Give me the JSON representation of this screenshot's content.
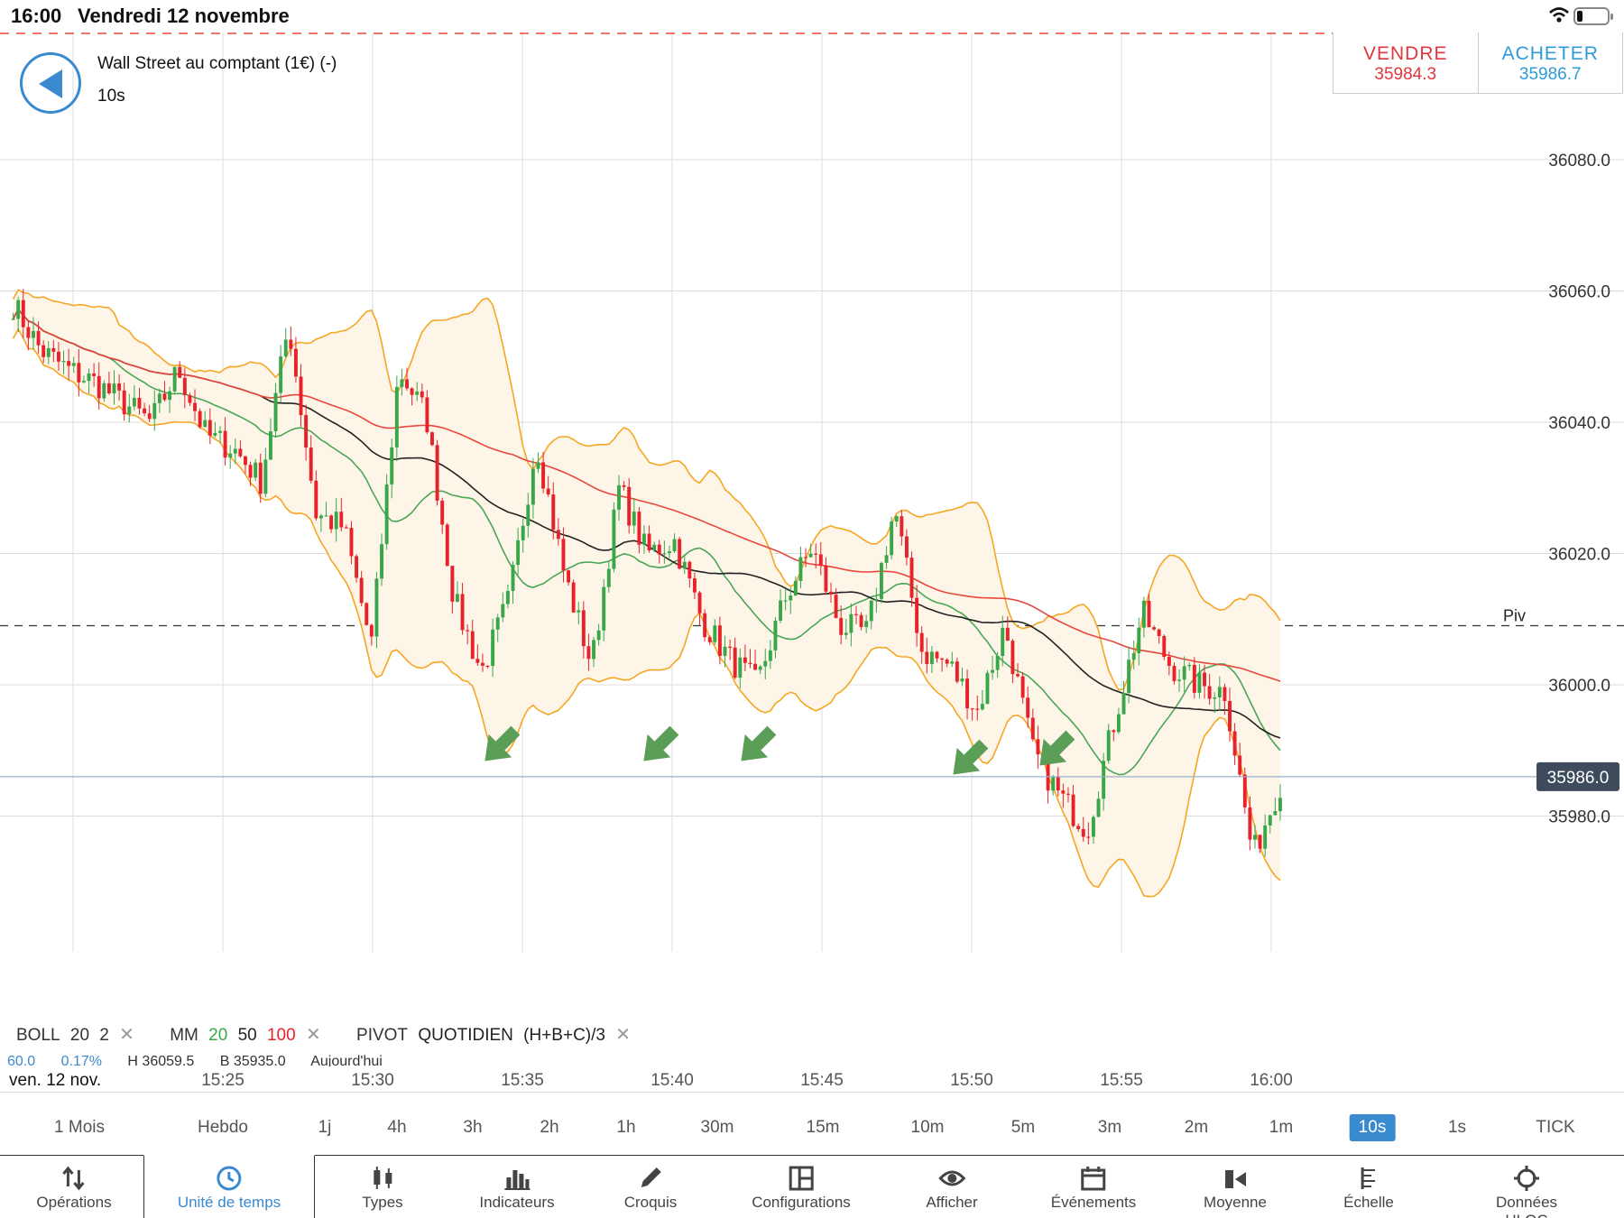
{
  "status_bar": {
    "time": "16:00",
    "date": "Vendredi 12 novembre",
    "icons": [
      "wifi-icon",
      "battery-icon"
    ]
  },
  "header": {
    "instrument": "Wall Street au comptant (1€) (-)",
    "timeframe": "10s"
  },
  "trade": {
    "sell_label": "VENDRE",
    "sell_price": "35984.3",
    "buy_label": "ACHETER",
    "buy_price": "35986.7"
  },
  "colors": {
    "up": "#3aa64a",
    "down": "#e8222a",
    "boll": "#f5a623",
    "mm20": "#4aa657",
    "mm50": "#222222",
    "mm100": "#e8473c",
    "accent": "#3a8ad0",
    "arrow": "#5b9e57"
  },
  "indicators": {
    "boll": {
      "name": "BOLL",
      "period": "20",
      "dev": "2"
    },
    "mm": {
      "name": "MM",
      "p1": "20",
      "p2": "50",
      "p3": "100"
    },
    "pivot": {
      "name": "PIVOT",
      "mode": "QUOTIDIEN",
      "formula": "(H+B+C)/3"
    }
  },
  "stats": {
    "v1": "60.0",
    "v2": "0.17%",
    "high": "H 36059.5",
    "low": "B 35935.0",
    "day": "Aujourd'hui"
  },
  "chart_data": {
    "type": "candlestick",
    "y_ticks": [
      "36080.0",
      "36060.0",
      "36040.0",
      "36020.0",
      "36000.0",
      "35980.0"
    ],
    "ylim": [
      35970,
      36083
    ],
    "current_price": "35986.0",
    "pivot_label": "Piv",
    "pivot_value": 36009,
    "x_ticks": [
      "15:25",
      "15:30",
      "15:35",
      "15:40",
      "15:45",
      "15:50",
      "15:55",
      "16:00"
    ],
    "date_label": "ven. 12 nov.",
    "close_anchors": [
      [
        15.3,
        36058
      ],
      [
        15.35,
        36051
      ],
      [
        15.4,
        36048
      ],
      [
        15.45,
        36046
      ],
      [
        15.5,
        36043
      ],
      [
        15.55,
        36040
      ],
      [
        15.6,
        36048
      ],
      [
        15.65,
        36038
      ],
      [
        15.7,
        36036
      ],
      [
        15.75,
        36031
      ],
      [
        15.8,
        36055
      ],
      [
        15.85,
        36026
      ],
      [
        15.9,
        36024
      ],
      [
        15.95,
        36006
      ],
      [
        16.0,
        36048
      ],
      [
        16.05,
        36041
      ],
      [
        16.1,
        36013
      ],
      [
        16.15,
        36002
      ],
      [
        16.2,
        36013
      ],
      [
        16.25,
        36037
      ],
      [
        16.3,
        36017
      ],
      [
        16.35,
        36003
      ],
      [
        16.4,
        36030
      ],
      [
        16.45,
        36020
      ],
      [
        16.5,
        36022
      ],
      [
        16.55,
        36010
      ],
      [
        16.6,
        36004
      ],
      [
        16.65,
        36000
      ],
      [
        16.7,
        36013
      ],
      [
        16.75,
        36021
      ],
      [
        16.8,
        36009
      ],
      [
        16.85,
        36008
      ],
      [
        16.9,
        36027
      ],
      [
        16.95,
        36005
      ],
      [
        17.0,
        36003
      ],
      [
        17.05,
        35996
      ],
      [
        17.1,
        36009
      ],
      [
        17.15,
        35990
      ],
      [
        17.2,
        35983
      ],
      [
        17.25,
        35978
      ],
      [
        17.3,
        35995
      ],
      [
        17.35,
        36011
      ],
      [
        17.4,
        36003
      ],
      [
        17.45,
        36000
      ],
      [
        17.5,
        35999
      ],
      [
        17.55,
        35974
      ],
      [
        17.6,
        35985
      ]
    ]
  },
  "time_units": [
    "1 Mois",
    "Hebdo",
    "1j",
    "4h",
    "3h",
    "2h",
    "1h",
    "30m",
    "15m",
    "10m",
    "5m",
    "3m",
    "2m",
    "1m",
    "10s",
    "1s",
    "TICK"
  ],
  "active_time_unit": "10s",
  "toolbar": [
    {
      "label": "Opérations",
      "icon": "operations-icon"
    },
    {
      "label": "Unité de temps",
      "icon": "clock-icon"
    },
    {
      "label": "Types",
      "icon": "candles-icon"
    },
    {
      "label": "Indicateurs",
      "icon": "bars-icon"
    },
    {
      "label": "Croquis",
      "icon": "pencil-icon"
    },
    {
      "label": "Configurations",
      "icon": "layout-icon"
    },
    {
      "label": "Afficher",
      "icon": "eye-icon"
    },
    {
      "label": "Événements",
      "icon": "calendar-icon"
    },
    {
      "label": "Moyenne",
      "icon": "average-icon"
    },
    {
      "label": "Échelle",
      "icon": "scale-icon"
    },
    {
      "label": "Données HLOC",
      "icon": "crosshair-icon"
    }
  ]
}
